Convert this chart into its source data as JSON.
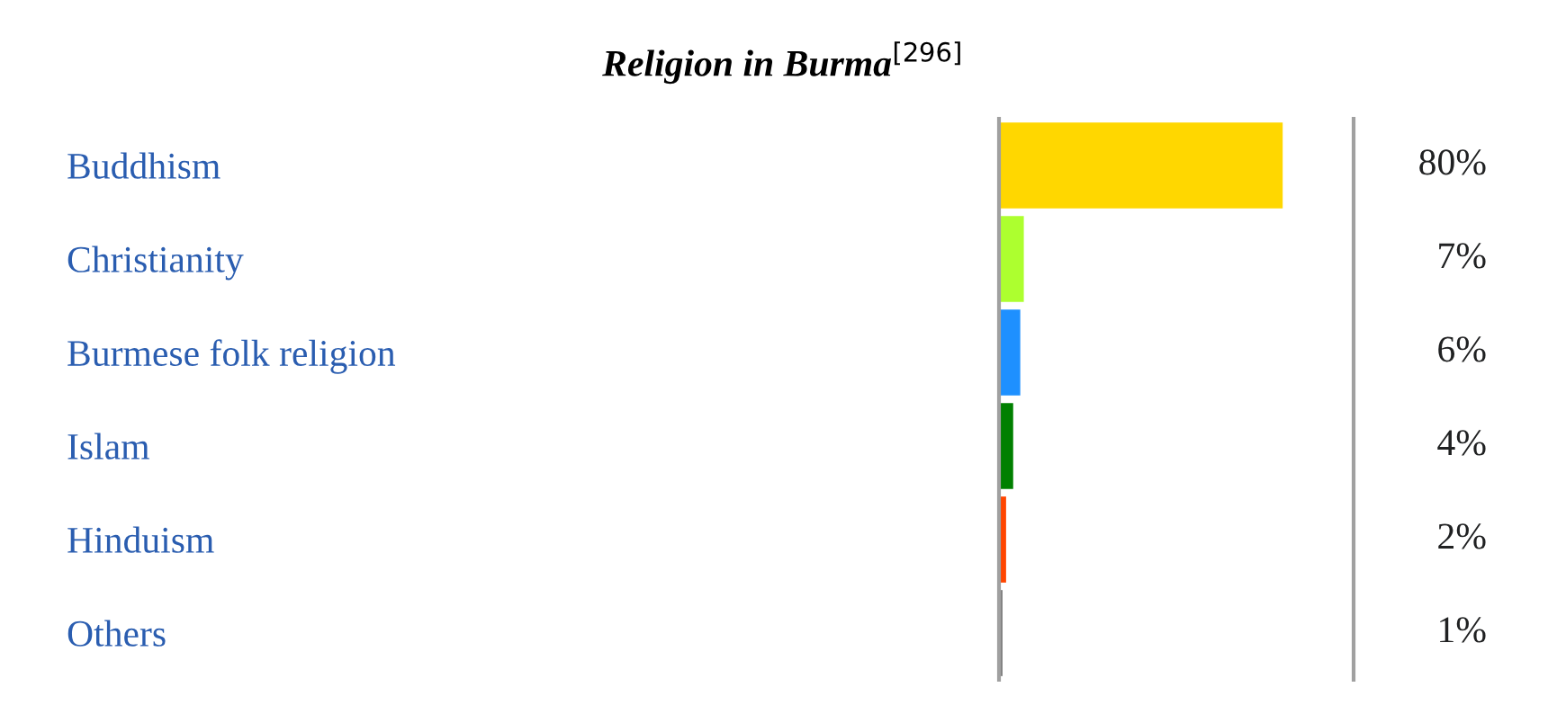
{
  "chart_data": {
    "type": "bar",
    "orientation": "horizontal",
    "title": "Religion in Burma$^{[296]}$",
    "categories": [
      "Buddhism",
      "Christianity",
      "Burmese folk religion",
      "Islam",
      "Hinduism",
      "Others"
    ],
    "values": [
      80,
      7,
      6,
      4,
      2,
      1
    ],
    "colors": [
      "#ffd700",
      "#adff2f",
      "#1e90ff",
      "#008000",
      "#ff4500",
      "#808080"
    ],
    "value_labels": [
      "80%",
      "7%",
      "6%",
      "4%",
      "2%",
      "1%"
    ],
    "grid": false,
    "legend": false
  }
}
